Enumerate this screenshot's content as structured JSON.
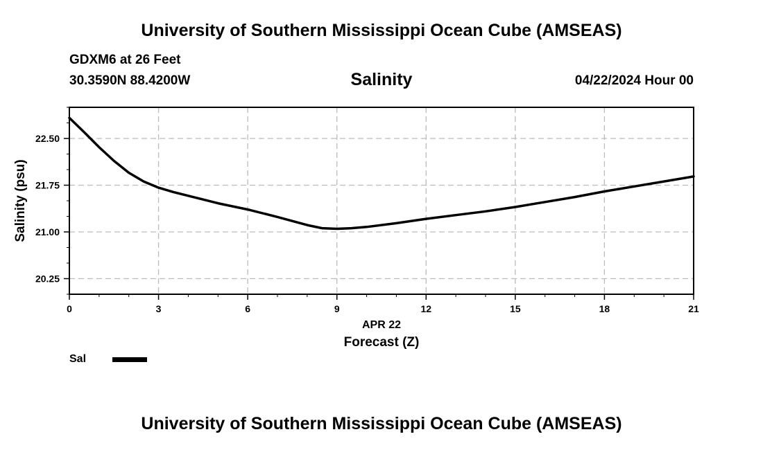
{
  "header": {
    "title": "University of Southern Mississippi Ocean Cube (AMSEAS)",
    "station": "GDXM6 at 26 Feet",
    "coordinates": "30.3590N  88.4200W",
    "variable": "Salinity",
    "datetime": "04/22/2024 Hour 00"
  },
  "footer": {
    "title": "University of Southern Mississippi Ocean Cube (AMSEAS)"
  },
  "legend": {
    "label": "Sal",
    "color": "#000000"
  },
  "chart_data": {
    "type": "line",
    "title": "Salinity",
    "xlabel": "Forecast (Z)",
    "xlabel_date": "APR 22",
    "ylabel": "Salinity (psu)",
    "xlim": [
      0,
      21
    ],
    "ylim": [
      20.0,
      23.0
    ],
    "xticks": [
      0,
      3,
      6,
      9,
      12,
      15,
      18,
      21
    ],
    "xtick_labels": [
      "0",
      "3",
      "6",
      "9",
      "12",
      "15",
      "18",
      "21"
    ],
    "yticks": [
      20.25,
      21.0,
      21.75,
      22.5
    ],
    "ytick_labels": [
      "20.25",
      "21.00",
      "21.75",
      "22.50"
    ],
    "grid": true,
    "series": [
      {
        "name": "Sal",
        "x": [
          0,
          0.5,
          1,
          1.5,
          2,
          2.5,
          3,
          3.5,
          4,
          4.5,
          5,
          6,
          7,
          8,
          8.5,
          9,
          9.5,
          10,
          11,
          12,
          13,
          14,
          15,
          16,
          17,
          18,
          19,
          20,
          21
        ],
        "values": [
          22.83,
          22.6,
          22.36,
          22.14,
          21.95,
          21.81,
          21.71,
          21.64,
          21.58,
          21.52,
          21.46,
          21.36,
          21.24,
          21.11,
          21.06,
          21.05,
          21.06,
          21.08,
          21.14,
          21.21,
          21.27,
          21.33,
          21.4,
          21.48,
          21.56,
          21.65,
          21.73,
          21.81,
          21.89
        ]
      }
    ]
  }
}
